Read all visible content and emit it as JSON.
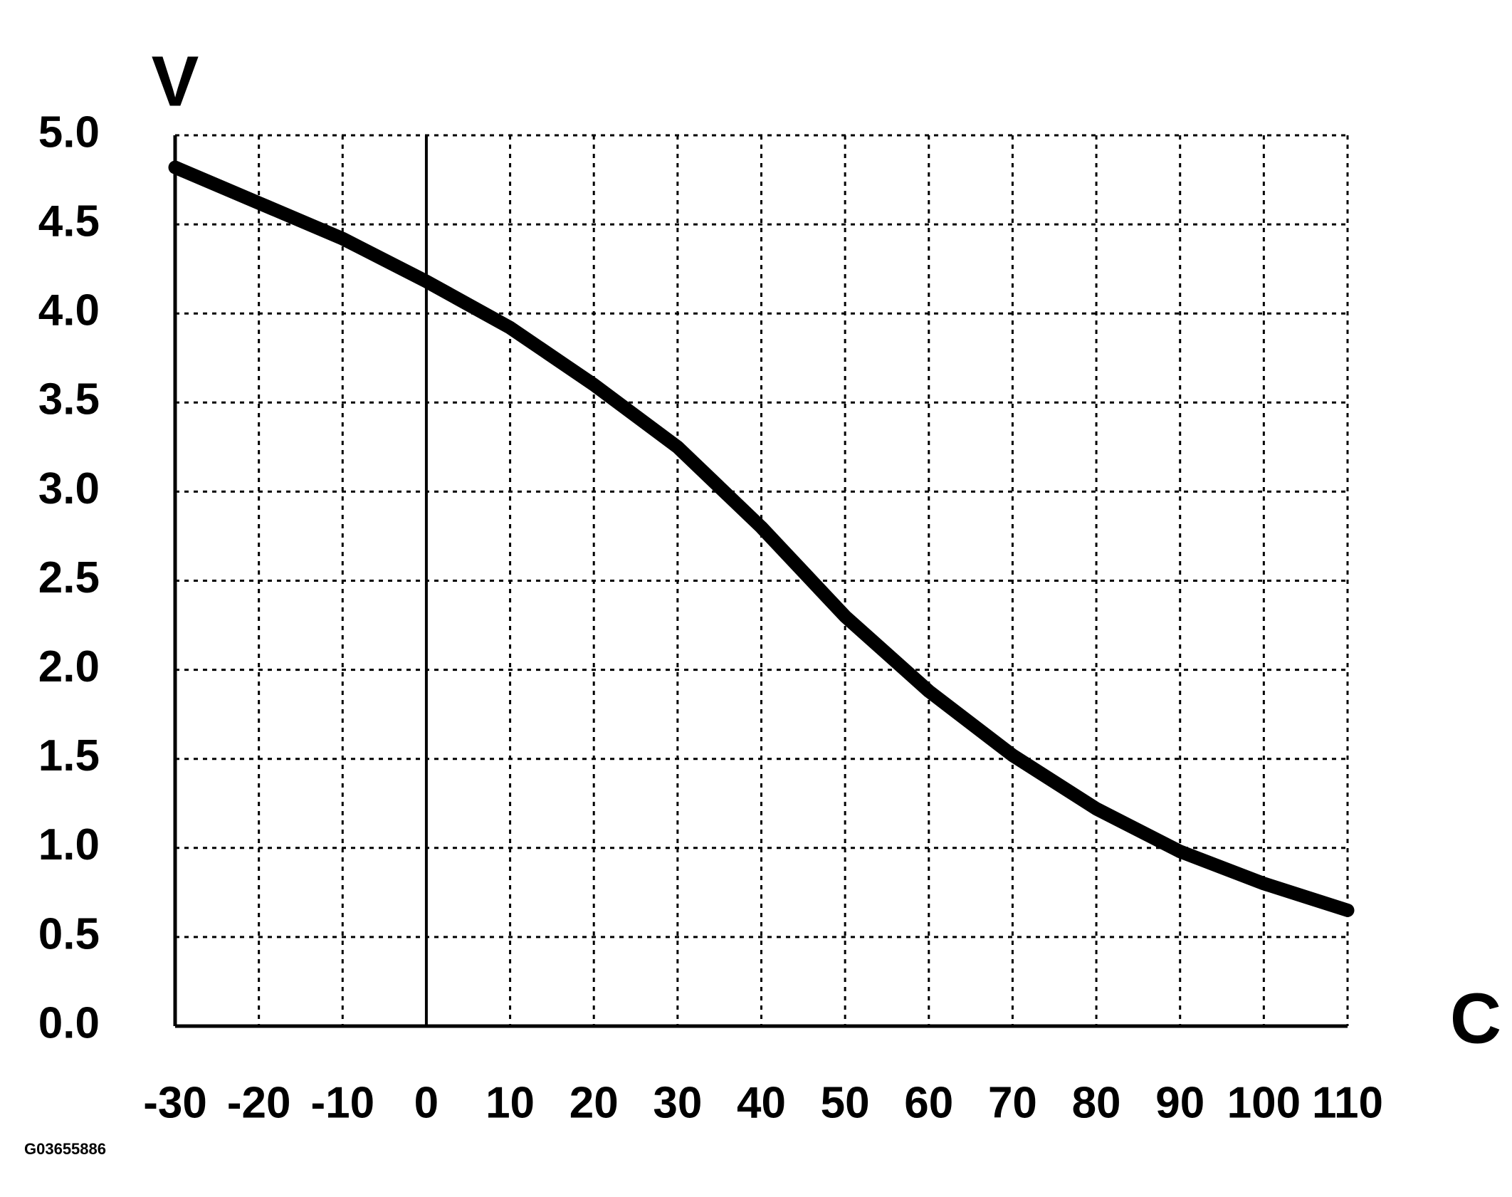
{
  "chart_data": {
    "type": "line",
    "y_label": "V",
    "x_label": "C",
    "footnote": "G03655886",
    "x": [
      -30,
      -20,
      -10,
      0,
      10,
      20,
      30,
      40,
      50,
      60,
      70,
      80,
      90,
      100,
      110
    ],
    "series": [
      {
        "color": "#000000",
        "values": [
          4.82,
          4.62,
          4.42,
          4.18,
          3.92,
          3.6,
          3.25,
          2.8,
          2.3,
          1.88,
          1.52,
          1.22,
          0.98,
          0.8,
          0.65
        ]
      }
    ],
    "xlim": [
      -30,
      110
    ],
    "xticks": [
      -30,
      -20,
      -10,
      0,
      10,
      20,
      30,
      40,
      50,
      60,
      70,
      80,
      90,
      100,
      110
    ],
    "ylim": [
      0,
      5
    ],
    "yticks": [
      {
        "value": 0,
        "label": "0.0"
      },
      {
        "value": 0.5,
        "label": "0.5"
      },
      {
        "value": 1,
        "label": "1.0"
      },
      {
        "value": 1.5,
        "label": "1.5"
      },
      {
        "value": 2,
        "label": "2.0"
      },
      {
        "value": 2.5,
        "label": "2.5"
      },
      {
        "value": 3,
        "label": "3.0"
      },
      {
        "value": 3.5,
        "label": "3.5"
      },
      {
        "value": 4,
        "label": "4.0"
      },
      {
        "value": 4.5,
        "label": "4.5"
      },
      {
        "value": 5,
        "label": "5.0"
      }
    ],
    "grid": true
  }
}
